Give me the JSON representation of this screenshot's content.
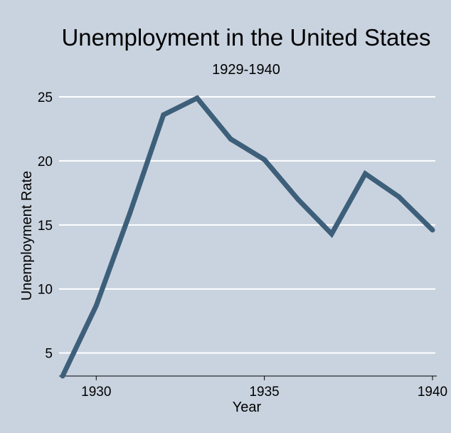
{
  "chart_data": {
    "type": "line",
    "title": "Unemployment in the United States",
    "subtitle": "1929-1940",
    "xlabel": "Year",
    "ylabel": "Unemployment Rate",
    "x": [
      1929,
      1930,
      1931,
      1932,
      1933,
      1934,
      1935,
      1936,
      1937,
      1938,
      1939,
      1940
    ],
    "series": [
      {
        "values": [
          3.2,
          8.7,
          15.9,
          23.6,
          24.9,
          21.7,
          20.1,
          17.0,
          14.3,
          19.0,
          17.2,
          14.6
        ]
      }
    ],
    "xlim": [
      1929,
      1940
    ],
    "ylim": [
      3.2,
      25
    ],
    "xticks": [
      "1930",
      "1935",
      "1940"
    ],
    "xtick_values": [
      1930,
      1935,
      1940
    ],
    "yticks": [
      "5",
      "10",
      "15",
      "20",
      "25"
    ],
    "ytick_values": [
      5,
      10,
      15,
      20,
      25
    ],
    "grid": "horizontal",
    "colors": {
      "background": "#c9d3df",
      "line": "#3d5f7a",
      "grid": "#ffffff"
    }
  }
}
